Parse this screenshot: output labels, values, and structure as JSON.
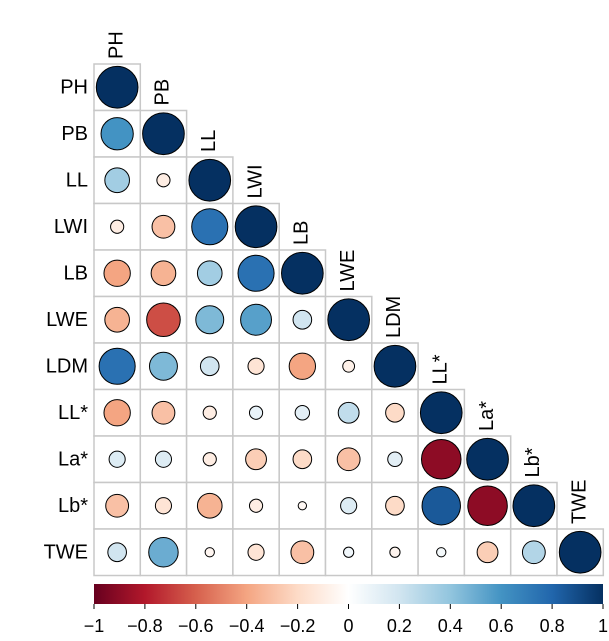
{
  "chart_data": {
    "type": "correlation",
    "variables": [
      "PH",
      "PB",
      "LL",
      "LWI",
      "LB",
      "LWE",
      "LDM",
      "LL*",
      "La*",
      "Lb*",
      "TWE"
    ],
    "matrix": [
      [
        1
      ],
      [
        0.6,
        1
      ],
      [
        0.35,
        -0.1,
        1
      ],
      [
        -0.1,
        -0.3,
        0.75,
        1
      ],
      [
        -0.4,
        -0.35,
        0.35,
        0.75,
        1
      ],
      [
        -0.35,
        -0.65,
        0.45,
        0.55,
        0.2,
        1
      ],
      [
        0.75,
        0.45,
        0.2,
        -0.15,
        -0.4,
        -0.08,
        1
      ],
      [
        -0.4,
        -0.3,
        -0.1,
        0.1,
        0.12,
        0.25,
        -0.2,
        1
      ],
      [
        0.15,
        0.15,
        -0.1,
        -0.25,
        -0.2,
        -0.3,
        0.12,
        -0.9,
        1
      ],
      [
        -0.3,
        -0.15,
        -0.35,
        -0.1,
        -0.04,
        0.15,
        -0.2,
        0.85,
        -0.9,
        1
      ],
      [
        0.2,
        0.5,
        -0.05,
        -0.15,
        -0.3,
        0.06,
        -0.06,
        0.05,
        -0.25,
        0.3,
        1
      ]
    ],
    "colormap": [
      "#67001F",
      "#B2182B",
      "#D6604D",
      "#F4A582",
      "#FDDBC7",
      "#FFFFFF",
      "#D1E5F0",
      "#92C5DE",
      "#4393C3",
      "#2166AC",
      "#053061"
    ],
    "clim": [
      -1,
      1
    ],
    "cticks": [
      {
        "value": -1,
        "label": "−1"
      },
      {
        "value": -0.8,
        "label": "−0.8"
      },
      {
        "value": -0.6,
        "label": "−0.6"
      },
      {
        "value": -0.4,
        "label": "−0.4"
      },
      {
        "value": -0.2,
        "label": "−0.2"
      },
      0,
      0.2,
      0.4,
      0.6,
      0.8,
      1
    ]
  }
}
